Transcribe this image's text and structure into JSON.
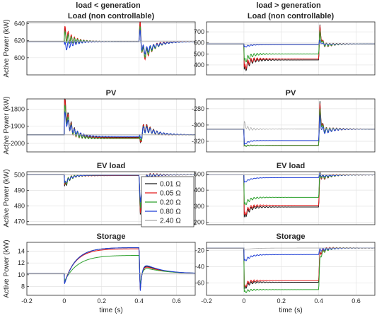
{
  "column_titles": [
    "load < generation",
    "load > generation"
  ],
  "ylabel": "Active Power (kW)",
  "xlabel": "time (s)",
  "legend": {
    "location": "inside EV load (left column), right",
    "entries": [
      {
        "label": "0.01 Ω",
        "color": "#1a1a1a"
      },
      {
        "label": "0.05 Ω",
        "color": "#e41a1c"
      },
      {
        "label": "0.20 Ω",
        "color": "#2ca02c"
      },
      {
        "label": "0.80 Ω",
        "color": "#1f3fd6"
      },
      {
        "label": "2.40 Ω",
        "color": "#a8a8a8"
      }
    ]
  },
  "chart_data": [
    {
      "type": "line",
      "title": "Load (non controllable)",
      "column": 0,
      "row": 0,
      "xlabel": "",
      "ylabel": "Active Power (kW)",
      "xlim": [
        -0.2,
        0.7
      ],
      "ylim": [
        580,
        642
      ],
      "xticks": [],
      "yticks": [
        600,
        620,
        640
      ],
      "grid": true,
      "series": [
        {
          "name": "0.01 Ω",
          "color": "#1a1a1a",
          "width": 1,
          "pre": 619,
          "plateau": 619,
          "post": 619,
          "spike1": 628,
          "spike2": 636,
          "dip2": 588,
          "osc1": 8,
          "osc2": 9,
          "tau": 0.03
        },
        {
          "name": "0.05 Ω",
          "color": "#e41a1c",
          "width": 1,
          "pre": 619,
          "plateau": 619,
          "post": 619,
          "spike1": 630,
          "spike2": 638,
          "dip2": 586,
          "osc1": 9,
          "osc2": 10,
          "tau": 0.03
        },
        {
          "name": "0.20 Ω",
          "color": "#2ca02c",
          "width": 1,
          "pre": 619,
          "plateau": 619,
          "post": 619,
          "spike1": 625,
          "spike2": 632,
          "dip2": 592,
          "osc1": 7,
          "osc2": 8,
          "tau": 0.035
        },
        {
          "name": "0.80 Ω",
          "color": "#1f3fd6",
          "width": 1,
          "pre": 619,
          "plateau": 619,
          "post": 619,
          "spike1": 612,
          "spike2": 628,
          "dip2": 600,
          "osc1": 6,
          "osc2": 7,
          "tau": 0.04
        },
        {
          "name": "2.40 Ω",
          "color": "#a8a8a8",
          "width": 0.8,
          "pre": 619,
          "plateau": 619,
          "post": 619,
          "spike1": 619,
          "spike2": 619,
          "dip2": 619,
          "osc1": 0,
          "osc2": 0,
          "tau": 0.05
        }
      ]
    },
    {
      "type": "line",
      "title": "PV",
      "column": 0,
      "row": 1,
      "xlabel": "",
      "ylabel": "Active Power (kW)",
      "xlim": [
        -0.2,
        0.7
      ],
      "ylim": [
        -2050,
        -1740
      ],
      "xticks": [],
      "yticks": [
        -1800,
        -1900,
        -2000
      ],
      "grid": true,
      "series": [
        {
          "name": "0.01 Ω",
          "color": "#1a1a1a",
          "width": 1,
          "pre": -1950,
          "plateau": -1965,
          "post": -1950,
          "spike1": -1755,
          "spike2": -2030,
          "dip2": -1855,
          "osc1": 55,
          "osc2": 40,
          "tau": 0.03
        },
        {
          "name": "0.05 Ω",
          "color": "#e41a1c",
          "width": 1,
          "pre": -1950,
          "plateau": -1968,
          "post": -1950,
          "spike1": -1770,
          "spike2": -2025,
          "dip2": -1860,
          "osc1": 55,
          "osc2": 40,
          "tau": 0.03
        },
        {
          "name": "0.20 Ω",
          "color": "#2ca02c",
          "width": 1,
          "pre": -1950,
          "plateau": -1972,
          "post": -1950,
          "spike1": -1800,
          "spike2": -2010,
          "dip2": -1880,
          "osc1": 45,
          "osc2": 35,
          "tau": 0.035
        },
        {
          "name": "0.80 Ω",
          "color": "#1f3fd6",
          "width": 1,
          "pre": -1950,
          "plateau": -1960,
          "post": -1950,
          "spike1": -1840,
          "spike2": -1990,
          "dip2": -1890,
          "osc1": 35,
          "osc2": 30,
          "tau": 0.04
        },
        {
          "name": "2.40 Ω",
          "color": "#a8a8a8",
          "width": 0.8,
          "pre": -1950,
          "plateau": -1950,
          "post": -1950,
          "spike1": -1950,
          "spike2": -1950,
          "dip2": -1950,
          "osc1": 0,
          "osc2": 0,
          "tau": 0.05
        }
      ]
    },
    {
      "type": "line",
      "title": "EV load",
      "column": 0,
      "row": 2,
      "xlabel": "",
      "ylabel": "Active Power (kW)",
      "xlim": [
        -0.2,
        0.7
      ],
      "ylim": [
        468,
        502
      ],
      "xticks": [],
      "yticks": [
        470,
        480,
        490,
        500
      ],
      "grid": true,
      "series": [
        {
          "name": "0.01 Ω",
          "color": "#1a1a1a",
          "width": 1,
          "pre": 500,
          "plateau": 499.5,
          "post": 500,
          "spike1": 491,
          "spike2": 471,
          "dip2": 498,
          "osc1": 2,
          "osc2": 3,
          "tau": 0.02
        },
        {
          "name": "0.05 Ω",
          "color": "#e41a1c",
          "width": 1,
          "pre": 500,
          "plateau": 499.5,
          "post": 500,
          "spike1": 492,
          "spike2": 472,
          "dip2": 498,
          "osc1": 2,
          "osc2": 3,
          "tau": 0.02
        },
        {
          "name": "0.20 Ω",
          "color": "#2ca02c",
          "width": 1,
          "pre": 500,
          "plateau": 499.7,
          "post": 500,
          "spike1": 493,
          "spike2": 476,
          "dip2": 499,
          "osc1": 2,
          "osc2": 2,
          "tau": 0.025
        },
        {
          "name": "0.80 Ω",
          "color": "#1f3fd6",
          "width": 1,
          "pre": 500,
          "plateau": 499.8,
          "post": 500,
          "spike1": 494,
          "spike2": 480,
          "dip2": 499,
          "osc1": 1,
          "osc2": 2,
          "tau": 0.03
        },
        {
          "name": "2.40 Ω",
          "color": "#a8a8a8",
          "width": 0.8,
          "pre": 500,
          "plateau": 500,
          "post": 500,
          "spike1": 500,
          "spike2": 500,
          "dip2": 500,
          "osc1": 0,
          "osc2": 0,
          "tau": 0.05
        }
      ]
    },
    {
      "type": "line",
      "title": "Storage",
      "column": 0,
      "row": 3,
      "xlabel": "time (s)",
      "ylabel": "Active Power (kW)",
      "xlim": [
        -0.2,
        0.7
      ],
      "ylim": [
        6.5,
        15.5
      ],
      "xticks": [
        -0.2,
        0,
        0.2,
        0.4,
        0.6
      ],
      "yticks": [
        8,
        10,
        12,
        14
      ],
      "grid": true,
      "series": [
        {
          "name": "0.01 Ω",
          "color": "#1a1a1a",
          "width": 1,
          "pre": 10.2,
          "plateau": 14.6,
          "post": 10.2,
          "spike1": 8.4,
          "spike2": 7.2,
          "dip2": 12.2,
          "osc1": 0,
          "osc2": 0,
          "tau": 0.06
        },
        {
          "name": "0.05 Ω",
          "color": "#e41a1c",
          "width": 1,
          "pre": 10.2,
          "plateau": 14.4,
          "post": 10.2,
          "spike1": 8.5,
          "spike2": 7.3,
          "dip2": 12.0,
          "osc1": 0,
          "osc2": 0,
          "tau": 0.06
        },
        {
          "name": "0.20 Ω",
          "color": "#2ca02c",
          "width": 1,
          "pre": 10.2,
          "plateau": 13.3,
          "post": 10.2,
          "spike1": 8.8,
          "spike2": 8.0,
          "dip2": 11.5,
          "osc1": 0,
          "osc2": 0,
          "tau": 0.07
        },
        {
          "name": "0.80 Ω",
          "color": "#1f3fd6",
          "width": 1,
          "pre": 10.2,
          "plateau": 14.6,
          "post": 10.2,
          "spike1": 8.3,
          "spike2": 7.0,
          "dip2": 12.4,
          "osc1": 0,
          "osc2": 0,
          "tau": 0.06
        },
        {
          "name": "2.40 Ω",
          "color": "#a8a8a8",
          "width": 0.8,
          "pre": 10.2,
          "plateau": 10.2,
          "post": 10.2,
          "spike1": 10.2,
          "spike2": 10.2,
          "dip2": 10.2,
          "osc1": 0,
          "osc2": 0,
          "tau": 0.05
        }
      ]
    },
    {
      "type": "line",
      "title": "Load (non controllable)",
      "column": 1,
      "row": 0,
      "xlabel": "",
      "ylabel": "",
      "xlim": [
        -0.2,
        0.7
      ],
      "ylim": [
        310,
        790
      ],
      "xticks": [],
      "yticks": [
        400,
        500,
        600,
        700
      ],
      "grid": true,
      "series": [
        {
          "name": "0.01 Ω",
          "color": "#1a1a1a",
          "width": 1,
          "pre": 590,
          "plateau": 445,
          "post": 590,
          "spike1": 330,
          "spike2": 755,
          "dip2": 540,
          "osc1": 40,
          "osc2": 30,
          "tau": 0.02
        },
        {
          "name": "0.05 Ω",
          "color": "#e41a1c",
          "width": 1,
          "pre": 590,
          "plateau": 455,
          "post": 590,
          "spike1": 350,
          "spike2": 745,
          "dip2": 545,
          "osc1": 40,
          "osc2": 30,
          "tau": 0.02
        },
        {
          "name": "0.20 Ω",
          "color": "#2ca02c",
          "width": 1,
          "pre": 590,
          "plateau": 500,
          "post": 590,
          "spike1": 420,
          "spike2": 700,
          "dip2": 560,
          "osc1": 30,
          "osc2": 25,
          "tau": 0.025
        },
        {
          "name": "0.80 Ω",
          "color": "#1f3fd6",
          "width": 1,
          "pre": 590,
          "plateau": 585,
          "post": 590,
          "spike1": 560,
          "spike2": 620,
          "dip2": 580,
          "osc1": 8,
          "osc2": 10,
          "tau": 0.03
        },
        {
          "name": "2.40 Ω",
          "color": "#a8a8a8",
          "width": 0.8,
          "pre": 590,
          "plateau": 590,
          "post": 590,
          "spike1": 590,
          "spike2": 590,
          "dip2": 590,
          "osc1": 0,
          "osc2": 0,
          "tau": 0.05
        }
      ]
    },
    {
      "type": "line",
      "title": "PV",
      "column": 1,
      "row": 1,
      "xlabel": "",
      "ylabel": "",
      "xlim": [
        -0.2,
        0.7
      ],
      "ylim": [
        -333,
        -268
      ],
      "xticks": [],
      "yticks": [
        -280,
        -300,
        -320
      ],
      "grid": true,
      "series": [
        {
          "name": "0.01 Ω",
          "color": "#1a1a1a",
          "width": 1,
          "pre": -305,
          "plateau": -325,
          "post": -305,
          "spike1": -326,
          "spike2": -273,
          "dip2": -318,
          "osc1": 1,
          "osc2": 6,
          "tau": 0.015
        },
        {
          "name": "0.05 Ω",
          "color": "#e41a1c",
          "width": 1,
          "pre": -305,
          "plateau": -325,
          "post": -305,
          "spike1": -326,
          "spike2": -276,
          "dip2": -318,
          "osc1": 1,
          "osc2": 6,
          "tau": 0.015
        },
        {
          "name": "0.20 Ω",
          "color": "#2ca02c",
          "width": 1,
          "pre": -305,
          "plateau": -325,
          "post": -305,
          "spike1": -326,
          "spike2": -282,
          "dip2": -316,
          "osc1": 1,
          "osc2": 5,
          "tau": 0.015
        },
        {
          "name": "0.80 Ω",
          "color": "#1f3fd6",
          "width": 1,
          "pre": -305,
          "plateau": -319,
          "post": -305,
          "spike1": -325,
          "spike2": -290,
          "dip2": -315,
          "osc1": 1,
          "osc2": 5,
          "tau": 0.02
        },
        {
          "name": "2.40 Ω",
          "color": "#a8a8a8",
          "width": 0.8,
          "pre": -305,
          "plateau": -305,
          "post": -305,
          "spike1": -296,
          "spike2": -305,
          "dip2": -305,
          "osc1": 3,
          "osc2": 0,
          "tau": 0.01
        }
      ]
    },
    {
      "type": "line",
      "title": "EV load",
      "column": 1,
      "row": 2,
      "xlabel": "",
      "ylabel": "",
      "xlim": [
        -0.2,
        0.7
      ],
      "ylim": [
        185,
        515
      ],
      "xticks": [],
      "yticks": [
        200,
        300,
        400,
        500
      ],
      "grid": true,
      "series": [
        {
          "name": "0.01 Ω",
          "color": "#1a1a1a",
          "width": 1,
          "pre": 495,
          "plateau": 295,
          "post": 495,
          "spike1": 215,
          "spike2": 505,
          "dip2": 450,
          "osc1": 20,
          "osc2": 20,
          "tau": 0.02
        },
        {
          "name": "0.05 Ω",
          "color": "#e41a1c",
          "width": 1,
          "pre": 495,
          "plateau": 305,
          "post": 495,
          "spike1": 230,
          "spike2": 505,
          "dip2": 455,
          "osc1": 20,
          "osc2": 20,
          "tau": 0.02
        },
        {
          "name": "0.20 Ω",
          "color": "#2ca02c",
          "width": 1,
          "pre": 495,
          "plateau": 355,
          "post": 495,
          "spike1": 300,
          "spike2": 503,
          "dip2": 465,
          "osc1": 15,
          "osc2": 15,
          "tau": 0.025
        },
        {
          "name": "0.80 Ω",
          "color": "#1f3fd6",
          "width": 1,
          "pre": 495,
          "plateau": 478,
          "post": 495,
          "spike1": 445,
          "spike2": 500,
          "dip2": 480,
          "osc1": 5,
          "osc2": 8,
          "tau": 0.03
        },
        {
          "name": "2.40 Ω",
          "color": "#a8a8a8",
          "width": 0.8,
          "pre": 495,
          "plateau": 495,
          "post": 495,
          "spike1": 495,
          "spike2": 495,
          "dip2": 495,
          "osc1": 0,
          "osc2": 0,
          "tau": 0.05
        }
      ]
    },
    {
      "type": "line",
      "title": "Storage",
      "column": 1,
      "row": 3,
      "xlabel": "time (s)",
      "ylabel": "",
      "xlim": [
        -0.2,
        0.7
      ],
      "ylim": [
        -75,
        -10
      ],
      "xticks": [
        -0.2,
        0,
        0.2,
        0.4,
        0.6
      ],
      "yticks": [
        -20,
        -40,
        -60
      ],
      "grid": true,
      "series": [
        {
          "name": "0.01 Ω",
          "color": "#1a1a1a",
          "width": 1,
          "pre": -17,
          "plateau": -59,
          "post": -17,
          "spike1": -70,
          "spike2": -24,
          "dip2": -22,
          "osc1": 3,
          "osc2": 3,
          "tau": 0.015
        },
        {
          "name": "0.05 Ω",
          "color": "#e41a1c",
          "width": 1,
          "pre": -17,
          "plateau": -57,
          "post": -17,
          "spike1": -68,
          "spike2": -25,
          "dip2": -22,
          "osc1": 3,
          "osc2": 3,
          "tau": 0.015
        },
        {
          "name": "0.20 Ω",
          "color": "#2ca02c",
          "width": 1,
          "pre": -17,
          "plateau": -68,
          "post": -17,
          "spike1": -72,
          "spike2": -30,
          "dip2": -24,
          "osc1": 2,
          "osc2": 3,
          "tau": 0.02
        },
        {
          "name": "0.80 Ω",
          "color": "#1f3fd6",
          "width": 1,
          "pre": -17,
          "plateau": -25,
          "post": -17,
          "spike1": -34,
          "spike2": -19,
          "dip2": -20,
          "osc1": 2,
          "osc2": 2,
          "tau": 0.03
        },
        {
          "name": "2.40 Ω",
          "color": "#a8a8a8",
          "width": 0.8,
          "pre": -17,
          "plateau": -17,
          "post": -17,
          "spike1": -19,
          "spike2": -17,
          "dip2": -17,
          "osc1": 0,
          "osc2": 0,
          "tau": 0.05
        }
      ]
    }
  ]
}
